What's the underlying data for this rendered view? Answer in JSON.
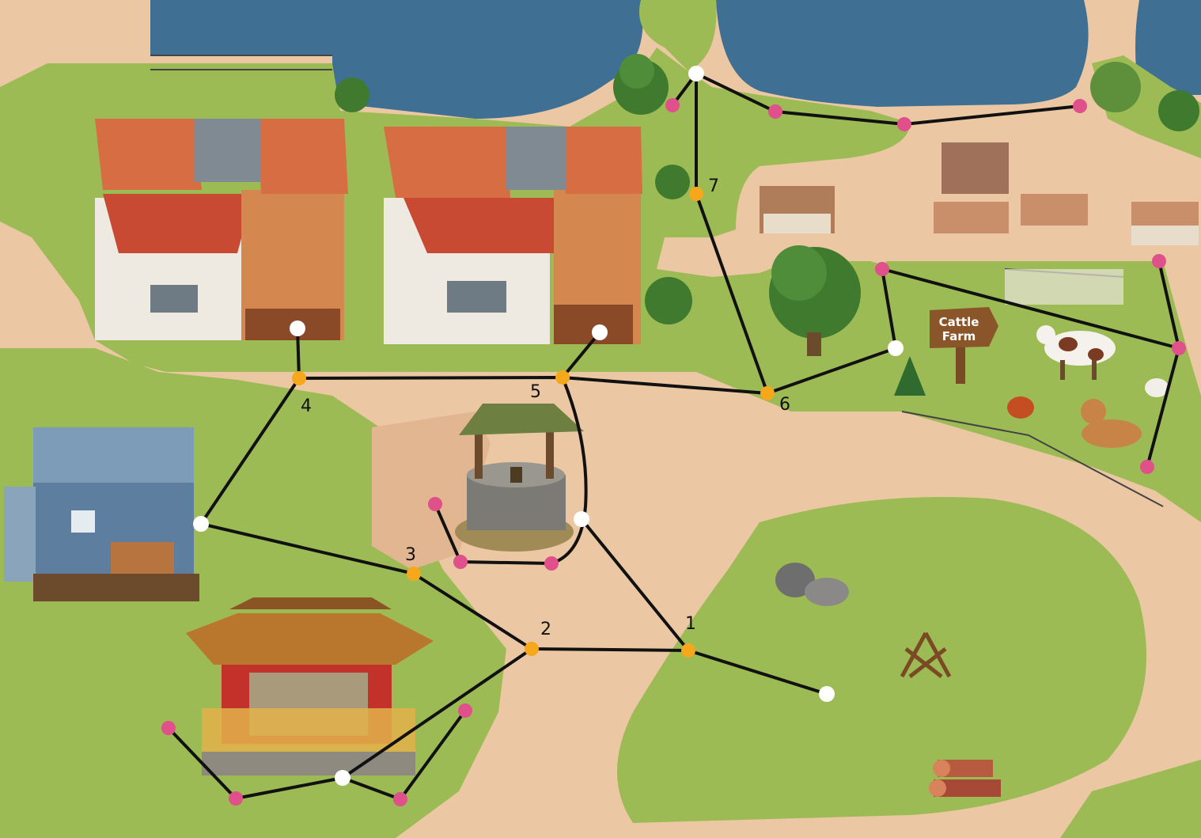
{
  "map": {
    "sign_text": [
      "Cattle",
      "Farm"
    ],
    "node_labels": [
      "1",
      "2",
      "3",
      "4",
      "5",
      "6",
      "7"
    ],
    "colors": {
      "grass": "#9dbb54",
      "dirt": "#ecc8a2",
      "water": "#3f6f93",
      "path_line": "#111111",
      "waypoint_orange": "#f5a81c",
      "waypoint_pink": "#e0508a",
      "waypoint_white": "#ffffff"
    },
    "icons": [
      "house-icon",
      "well-icon",
      "pagoda-icon",
      "cow-icon",
      "bull-icon",
      "chicken-icon",
      "campfire-icon",
      "log-pile-icon",
      "rock-icon",
      "tree-icon",
      "barn-icon",
      "fence-icon",
      "sign-icon"
    ]
  }
}
